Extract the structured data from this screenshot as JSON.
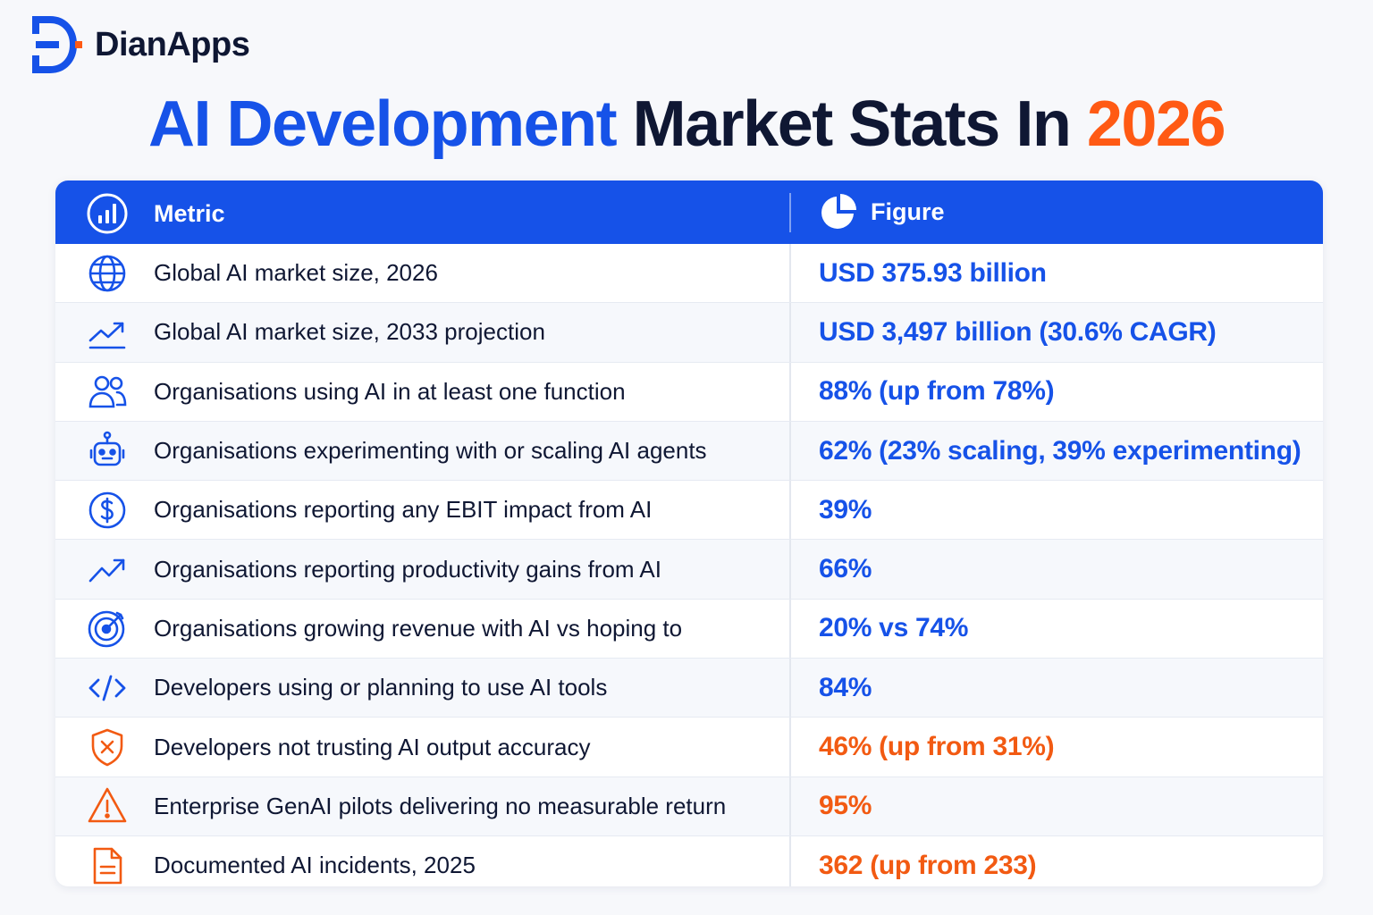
{
  "brand": {
    "name": "DianApps"
  },
  "title": {
    "part1": "AI Development",
    "part2": "Market Stats In",
    "part3": "2026"
  },
  "table": {
    "headers": {
      "metric": "Metric",
      "figure": "Figure"
    },
    "header_icons": {
      "metric": "bar-chart-icon",
      "figure": "pie-chart-icon"
    },
    "colors": {
      "blue": "#1652e8",
      "orange": "#f25a12",
      "dark": "#0f1733"
    },
    "rows": [
      {
        "icon": "globe-icon",
        "metric": "Global AI market size, 2026",
        "figure": "USD 375.93 billion",
        "tone": "blue"
      },
      {
        "icon": "trend-line-icon",
        "metric": "Global AI market size, 2033 projection",
        "figure": "USD 3,497 billion (30.6% CAGR)",
        "tone": "blue"
      },
      {
        "icon": "users-icon",
        "metric": "Organisations using AI in at least one function",
        "figure": "88% (up from 78%)",
        "tone": "blue"
      },
      {
        "icon": "robot-icon",
        "metric": "Organisations experimenting with or scaling AI agents",
        "figure": "62% (23% scaling, 39% experimenting)",
        "tone": "blue"
      },
      {
        "icon": "dollar-icon",
        "metric": "Organisations reporting any EBIT impact from AI",
        "figure": "39%",
        "tone": "blue"
      },
      {
        "icon": "trend-up-icon",
        "metric": "Organisations reporting productivity gains from AI",
        "figure": "66%",
        "tone": "blue"
      },
      {
        "icon": "target-icon",
        "metric": "Organisations growing revenue with AI vs hoping to",
        "figure": "20% vs 74%",
        "tone": "blue"
      },
      {
        "icon": "code-icon",
        "metric": "Developers using or planning to use AI tools",
        "figure": "84%",
        "tone": "blue"
      },
      {
        "icon": "shield-x-icon",
        "metric": "Developers not trusting AI output accuracy",
        "figure": "46% (up from 31%)",
        "tone": "orange"
      },
      {
        "icon": "warning-icon",
        "metric": "Enterprise GenAI pilots delivering no measurable return",
        "figure": "95%",
        "tone": "orange"
      },
      {
        "icon": "document-icon",
        "metric": "Documented AI incidents, 2025",
        "figure": "362 (up from 233)",
        "tone": "orange"
      }
    ]
  }
}
